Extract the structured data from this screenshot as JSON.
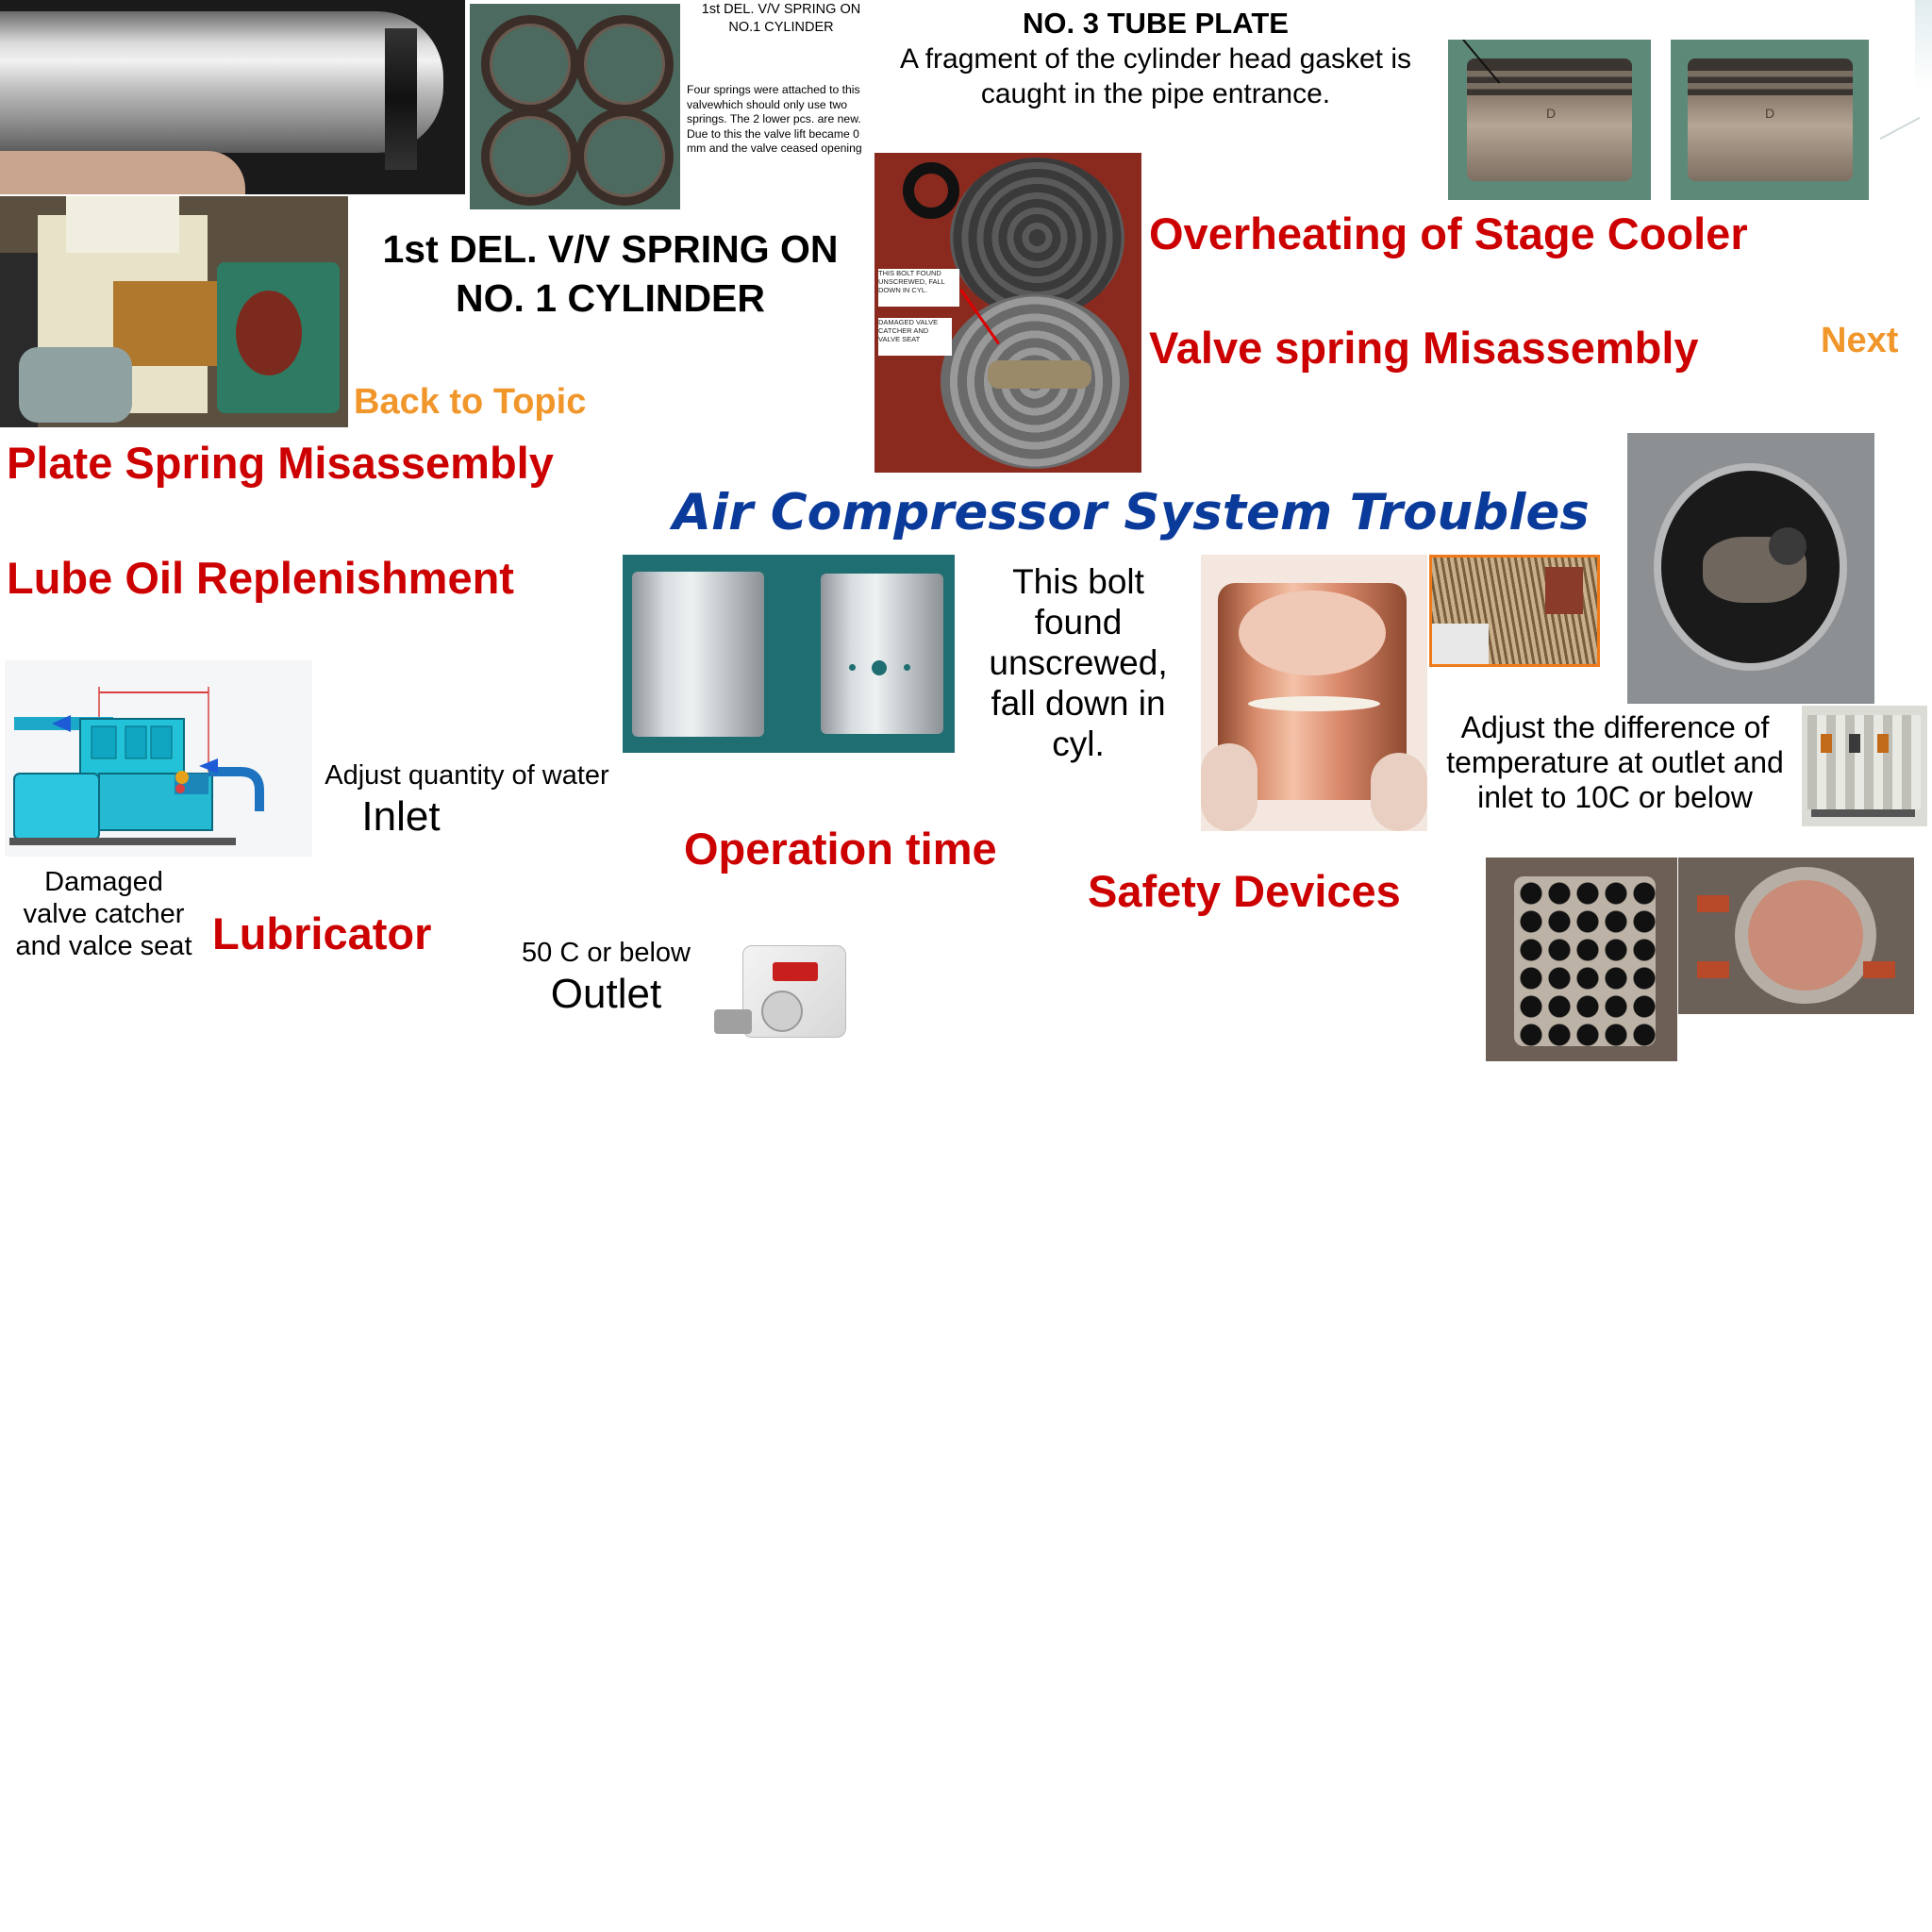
{
  "topics": {
    "plate_spring": "Plate Spring Misassembly",
    "lube_oil": "Lube Oil Replenishment",
    "lubricator": "Lubricator",
    "operation_time": "Operation time",
    "safety_devices": "Safety Devices",
    "overheating": "Overheating of Stage Cooler",
    "valve_spring": "Valve spring Misassembly"
  },
  "nav": {
    "back": "Back to Topic",
    "next": "Next"
  },
  "title": "Air Compressor System Troubles",
  "texts": {
    "del_spring_heading": "1st DEL. V/V SPRING ON NO. 1 CYLINDER",
    "small_heading": "1st DEL. V/V SPRING ON NO.1 CYLINDER",
    "small_note": "Four springs were attached to this valvewhich should only use two springs. The 2 lower pcs. are new. Due to this the valve lift became 0 mm and the valve ceased opening",
    "tube_plate_heading": "NO. 3 TUBE PLATE",
    "tube_plate_note": "A fragment of the cylinder head gasket is caught in the pipe entrance.",
    "bolt_note": "This bolt found unscrewed, fall down in cyl.",
    "adjust_temp": "Adjust the difference of temperature at outlet and inlet to 10C or below",
    "adjust_water": "Adjust quantity of water",
    "inlet": "Inlet",
    "outlet_limit": "50 C or below",
    "outlet": "Outlet",
    "damaged_catcher": "Damaged valve catcher and valce seat",
    "photo_label_bolt": "THIS BOLT FOUND UNSCREWED, FALL DOWN IN CYL.",
    "photo_label_catcher": "DAMAGED VALVE CATCHER AND VALVE SEAT",
    "piston_mark": "D"
  },
  "colors": {
    "topic_red": "#cc0000",
    "nav_orange": "#f0962a",
    "title_blue": "#0a3a9a"
  }
}
